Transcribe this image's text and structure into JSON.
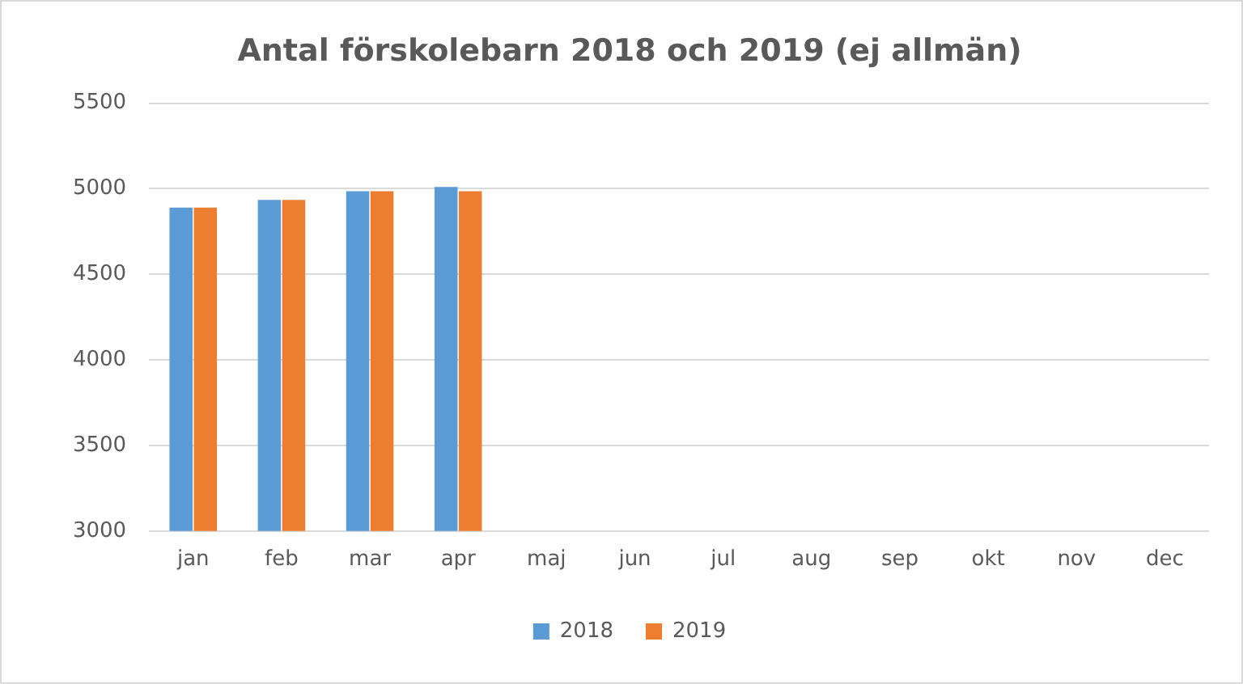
{
  "chart_data": {
    "type": "bar",
    "title": "Antal förskolebarn 2018 och 2019 (ej allmän)",
    "categories": [
      "jan",
      "feb",
      "mar",
      "apr",
      "maj",
      "jun",
      "jul",
      "aug",
      "sep",
      "okt",
      "nov",
      "dec"
    ],
    "series": [
      {
        "name": "2018",
        "color": "#5b9bd5",
        "values": [
          4890,
          4935,
          4985,
          5010,
          null,
          null,
          null,
          null,
          null,
          null,
          null,
          null
        ]
      },
      {
        "name": "2019",
        "color": "#ed7d31",
        "values": [
          4890,
          4935,
          4985,
          4985,
          null,
          null,
          null,
          null,
          null,
          null,
          null,
          null
        ]
      }
    ],
    "ylim": [
      3000,
      5500
    ],
    "yticks": [
      3000,
      3500,
      4000,
      4500,
      5000,
      5500
    ],
    "grid": "y",
    "legend": "bottom"
  }
}
